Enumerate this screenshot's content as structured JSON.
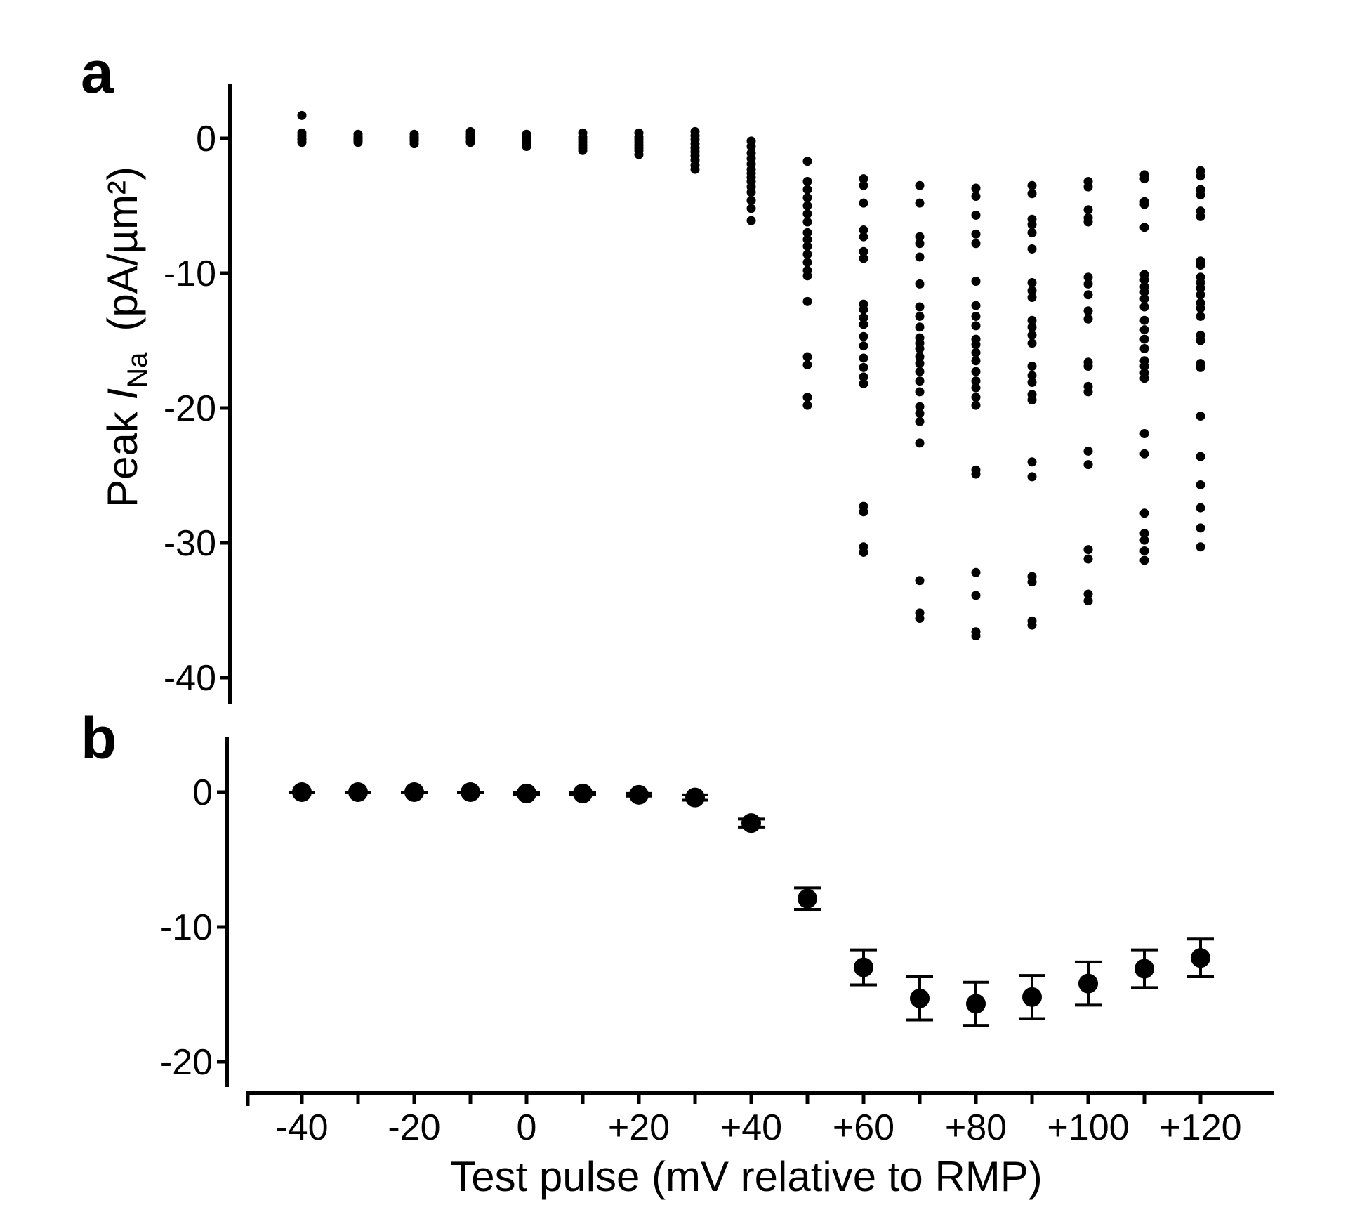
{
  "panel_labels": [
    "a",
    "b"
  ],
  "x_axis": {
    "title": "Test pulse (mV relative to RMP)",
    "ticks": [
      -40,
      -30,
      -20,
      -10,
      0,
      10,
      20,
      30,
      40,
      50,
      60,
      70,
      80,
      90,
      100,
      110,
      120
    ],
    "tick_labels": [
      "-40",
      "-20",
      "0",
      "+20",
      "+40",
      "+60",
      "+80",
      "+100",
      "+120"
    ]
  },
  "y_axis": {
    "title_prefix": "Peak ",
    "title_symbol": "I",
    "title_subscript": "Na",
    "title_units": "(pA/µm²)"
  },
  "colors": {
    "marks": "#000000",
    "background": "#ffffff"
  },
  "chart_data": [
    {
      "panel": "a",
      "type": "scatter",
      "xlabel": "Test pulse (mV relative to RMP)",
      "ylabel": "Peak INa (pA/µm²)",
      "xlim": [
        -50,
        133
      ],
      "ylim": [
        -41.5,
        4
      ],
      "yticks": [
        0,
        -10,
        -20,
        -30,
        -40
      ],
      "grid": false,
      "legend": "none",
      "series": [
        {
          "x": -40,
          "values": [
            1.7,
            0.4,
            0.2,
            0.0,
            -0.1,
            -0.3
          ]
        },
        {
          "x": -30,
          "values": [
            0.3,
            0.1,
            0.0,
            -0.1,
            -0.2,
            -0.3
          ]
        },
        {
          "x": -20,
          "values": [
            0.3,
            0.1,
            0.0,
            -0.1,
            -0.2,
            -0.4
          ]
        },
        {
          "x": -10,
          "values": [
            0.5,
            0.3,
            0.1,
            0.0,
            -0.2,
            -0.3
          ]
        },
        {
          "x": 0,
          "values": [
            0.3,
            0.1,
            -0.1,
            -0.2,
            -0.4,
            -0.6
          ]
        },
        {
          "x": 10,
          "values": [
            0.4,
            0.1,
            -0.1,
            -0.3,
            -0.5,
            -0.7,
            -0.9
          ]
        },
        {
          "x": 20,
          "values": [
            0.4,
            0.1,
            -0.1,
            -0.3,
            -0.5,
            -0.7,
            -0.9,
            -1.2
          ]
        },
        {
          "x": 30,
          "values": [
            0.5,
            0.2,
            -0.1,
            -0.4,
            -0.7,
            -1.0,
            -1.3,
            -1.6,
            -2.0,
            -2.3
          ]
        },
        {
          "x": 40,
          "values": [
            -0.2,
            -0.6,
            -1.1,
            -1.5,
            -1.9,
            -2.3,
            -2.6,
            -2.9,
            -3.2,
            -3.6,
            -4.0,
            -4.6,
            -5.2,
            -6.1
          ]
        },
        {
          "x": 50,
          "values": [
            -1.7,
            -3.2,
            -3.8,
            -4.4,
            -5.0,
            -5.6,
            -6.2,
            -7.0,
            -7.5,
            -8.0,
            -8.6,
            -9.2,
            -9.8,
            -10.2,
            -12.1,
            -16.2,
            -16.8,
            -19.2,
            -19.8
          ]
        },
        {
          "x": 60,
          "values": [
            -3.0,
            -3.5,
            -4.8,
            -6.8,
            -7.3,
            -8.4,
            -8.9,
            -12.3,
            -12.7,
            -13.3,
            -13.8,
            -14.7,
            -15.4,
            -16.3,
            -17.0,
            -17.7,
            -18.2,
            -27.3,
            -27.7,
            -30.3,
            -30.7
          ]
        },
        {
          "x": 70,
          "values": [
            -3.5,
            -4.8,
            -7.3,
            -7.8,
            -8.8,
            -10.8,
            -12.5,
            -13.2,
            -14.0,
            -14.8,
            -15.2,
            -15.6,
            -16.2,
            -16.7,
            -17.3,
            -18.0,
            -18.8,
            -19.9,
            -20.4,
            -21.0,
            -22.6,
            -32.8,
            -35.2,
            -35.6
          ]
        },
        {
          "x": 80,
          "values": [
            -3.7,
            -4.3,
            -5.7,
            -7.1,
            -7.8,
            -10.6,
            -12.4,
            -13.2,
            -13.9,
            -14.9,
            -15.3,
            -15.9,
            -16.5,
            -17.3,
            -18.0,
            -18.5,
            -19.2,
            -19.8,
            -24.6,
            -24.9,
            -32.2,
            -33.9,
            -36.6,
            -36.9
          ]
        },
        {
          "x": 90,
          "values": [
            -3.5,
            -4.1,
            -6.0,
            -6.4,
            -7.0,
            -8.2,
            -10.7,
            -11.3,
            -11.8,
            -13.5,
            -14.0,
            -14.6,
            -15.2,
            -16.9,
            -17.6,
            -18.1,
            -19.0,
            -19.4,
            -24.0,
            -25.1,
            -32.5,
            -32.9,
            -35.8,
            -36.1
          ]
        },
        {
          "x": 100,
          "values": [
            -3.2,
            -3.6,
            -5.3,
            -5.9,
            -6.2,
            -10.3,
            -10.8,
            -11.6,
            -12.8,
            -13.4,
            -16.6,
            -16.9,
            -18.4,
            -18.8,
            -23.2,
            -24.2,
            -30.5,
            -31.2,
            -33.8,
            -34.3
          ]
        },
        {
          "x": 110,
          "values": [
            -2.7,
            -3.0,
            -4.7,
            -4.9,
            -6.6,
            -10.1,
            -10.5,
            -11.0,
            -11.4,
            -11.9,
            -12.5,
            -13.5,
            -14.2,
            -14.9,
            -15.6,
            -16.5,
            -16.9,
            -17.4,
            -17.8,
            -21.9,
            -23.4,
            -27.8,
            -29.3,
            -29.8,
            -30.6,
            -31.3
          ]
        },
        {
          "x": 120,
          "values": [
            -2.4,
            -2.8,
            -3.8,
            -4.2,
            -5.4,
            -5.8,
            -9.1,
            -9.4,
            -10.3,
            -10.7,
            -11.1,
            -11.6,
            -12.2,
            -12.6,
            -13.2,
            -14.6,
            -15.0,
            -16.7,
            -17.0,
            -20.6,
            -23.6,
            -25.7,
            -27.4,
            -28.9,
            -30.3
          ]
        }
      ]
    },
    {
      "panel": "b",
      "type": "scatter",
      "xlabel": "Test pulse (mV relative to RMP)",
      "ylabel": "Peak INa (pA/µm²)",
      "xlim": [
        -50,
        133
      ],
      "ylim": [
        -21.5,
        4
      ],
      "yticks": [
        0,
        -10,
        -20
      ],
      "grid": false,
      "legend": "none",
      "x": [
        -40,
        -30,
        -20,
        -10,
        0,
        10,
        20,
        30,
        40,
        50,
        60,
        70,
        80,
        90,
        100,
        110,
        120
      ],
      "mean": [
        0.0,
        0.0,
        0.0,
        0.0,
        -0.1,
        -0.1,
        -0.2,
        -0.4,
        -2.3,
        -7.9,
        -13.0,
        -15.3,
        -15.7,
        -15.2,
        -14.2,
        -13.1,
        -12.3
      ],
      "error": [
        0.0,
        0.0,
        0.0,
        0.0,
        0.1,
        0.1,
        0.1,
        0.2,
        0.3,
        0.8,
        1.3,
        1.6,
        1.6,
        1.6,
        1.6,
        1.4,
        1.4
      ]
    }
  ]
}
